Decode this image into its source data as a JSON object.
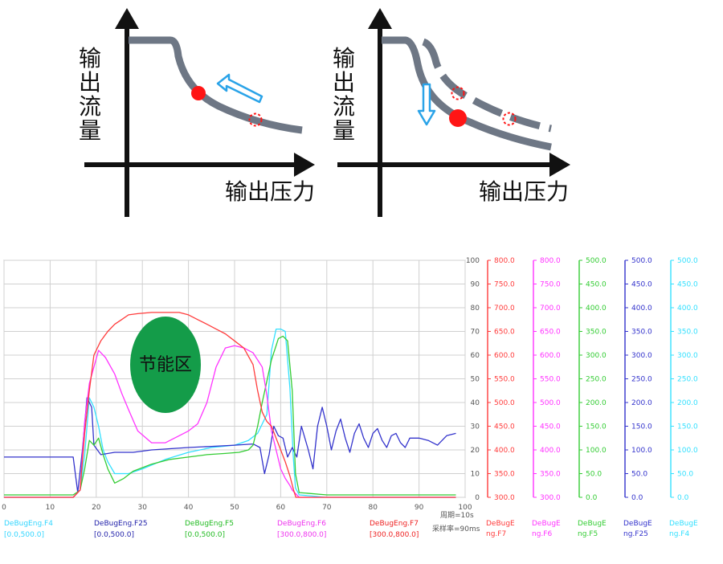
{
  "diagram_left": {
    "y_label": [
      "输",
      "出",
      "流",
      "量"
    ],
    "x_label": "输出压力"
  },
  "diagram_right": {
    "y_label": [
      "输",
      "出",
      "流",
      "量"
    ],
    "x_label": "输出压力"
  },
  "chart_data": {
    "type": "line",
    "annotation": "节能区",
    "x_ticks": [
      "0",
      "10",
      "20",
      "30",
      "40",
      "50",
      "60",
      "70",
      "80",
      "90",
      "100"
    ],
    "left_axis_ticks": [
      "100",
      "90",
      "80",
      "70",
      "60",
      "50",
      "40",
      "30",
      "20",
      "10",
      "0"
    ],
    "period_text": "周期=10s",
    "sample_text": "采样率=90ms",
    "right_axes": [
      {
        "name_line1": "DeBugE",
        "name_line2": "ng.F7",
        "color": "#ff3b3b",
        "ticks": [
          "800.0",
          "750.0",
          "700.0",
          "650.0",
          "600.0",
          "550.0",
          "500.0",
          "450.0",
          "400.0",
          "350.0",
          "300.0"
        ]
      },
      {
        "name_line1": "DeBugE",
        "name_line2": "ng.F6",
        "color": "#ff33ff",
        "ticks": [
          "800.0",
          "750.0",
          "700.0",
          "650.0",
          "600.0",
          "550.0",
          "500.0",
          "450.0",
          "400.0",
          "350.0",
          "300.0"
        ]
      },
      {
        "name_line1": "DeBugE",
        "name_line2": "ng.F5",
        "color": "#33cc33",
        "ticks": [
          "500.0",
          "450.0",
          "400.0",
          "350.0",
          "300.0",
          "250.0",
          "200.0",
          "150.0",
          "100.0",
          "50.0",
          "0.0"
        ]
      },
      {
        "name_line1": "DeBugE",
        "name_line2": "ng.F25",
        "color": "#3333cc",
        "ticks": [
          "500.0",
          "450.0",
          "400.0",
          "350.0",
          "300.0",
          "250.0",
          "200.0",
          "150.0",
          "100.0",
          "50.0",
          "0.0"
        ]
      },
      {
        "name_line1": "DeBugE",
        "name_line2": "ng.F4",
        "color": "#33e0ff",
        "ticks": [
          "500.0",
          "450.0",
          "400.0",
          "350.0",
          "300.0",
          "250.0",
          "200.0",
          "150.0",
          "100.0",
          "50.0",
          "0.0"
        ]
      }
    ],
    "legend": [
      {
        "name": "DeBugEng.F4",
        "range": "[0.0,500.0]",
        "color": "#33d6ff"
      },
      {
        "name": "DeBugEng.F25",
        "range": "[0.0,500.0]",
        "color": "#2222aa"
      },
      {
        "name": "DeBugEng.F5",
        "range": "[0.0,500.0]",
        "color": "#22bb22"
      },
      {
        "name": "DeBugEng.F6",
        "range": "[300.0,800.0]",
        "color": "#ee33ee"
      },
      {
        "name": "DeBugEng.F7",
        "range": "[300.0,800.0]",
        "color": "#ee2222"
      }
    ],
    "xlim": [
      0,
      100
    ],
    "ylim": [
      0,
      100
    ],
    "series": [
      {
        "key": "F4",
        "color": "#33e0ff",
        "x": [
          0,
          15,
          16.5,
          17.5,
          18.5,
          19.5,
          20.5,
          21.5,
          22.5,
          24,
          27,
          30,
          35,
          40,
          45,
          50,
          53,
          55,
          57,
          58,
          59,
          60,
          61,
          62,
          62.7,
          63.2,
          64,
          70,
          80,
          90,
          98
        ],
        "y": [
          0,
          0,
          3,
          18,
          42,
          38,
          30,
          20,
          15,
          10,
          10,
          12,
          16,
          19,
          21,
          22,
          24,
          27,
          35,
          62,
          71,
          71,
          70,
          46,
          18,
          4,
          1,
          0,
          0,
          0,
          0
        ]
      },
      {
        "key": "F25",
        "color": "#3333cc",
        "x": [
          0,
          10,
          15,
          16,
          17,
          18,
          19,
          19.5,
          21,
          24,
          28,
          32,
          36,
          40,
          45,
          50,
          54,
          55.5,
          56.5,
          57.5,
          58.5,
          59.5,
          60.5,
          61.5,
          62.5,
          63.5,
          64.5,
          66,
          67,
          68,
          69,
          70,
          71,
          72,
          73,
          74,
          75,
          76,
          77,
          78,
          79,
          80,
          81,
          82,
          83,
          84,
          85,
          86,
          87,
          88,
          90,
          92,
          94,
          96,
          98
        ],
        "y": [
          17,
          17,
          17,
          2,
          20,
          42,
          38,
          22,
          18,
          19,
          19,
          20,
          20.5,
          21,
          21.5,
          22,
          22.5,
          21,
          10,
          18,
          30,
          26,
          25,
          17,
          21,
          17,
          30,
          20,
          12,
          30,
          38,
          30,
          20,
          28,
          33,
          25,
          19,
          27,
          31,
          25,
          21,
          27,
          29,
          24,
          21,
          26,
          27,
          23,
          21,
          25,
          25,
          24,
          22,
          26,
          27
        ]
      },
      {
        "key": "F5",
        "color": "#33cc33",
        "x": [
          0,
          15,
          16.5,
          17.5,
          18.5,
          19.5,
          20.5,
          21.5,
          22.5,
          24,
          26,
          28,
          32,
          36,
          40,
          44,
          48,
          51,
          53,
          54,
          55,
          56,
          57,
          58,
          59,
          59.5,
          60.5,
          61.5,
          62.5,
          63.2,
          64,
          70,
          80,
          90,
          98
        ],
        "y": [
          1,
          1,
          3,
          12,
          24,
          22,
          25,
          18,
          12,
          6,
          8,
          11,
          14,
          16,
          17,
          18,
          18.5,
          19,
          20,
          22,
          30,
          40,
          49,
          58,
          64,
          67,
          68,
          66,
          45,
          10,
          2,
          1,
          1,
          1,
          1
        ]
      },
      {
        "key": "F6",
        "color": "#ff33ff",
        "x": [
          0,
          15,
          16.5,
          17.5,
          18.5,
          19.5,
          20.5,
          22,
          24,
          25.5,
          27,
          29,
          32,
          35,
          38,
          40,
          42,
          44,
          46,
          48,
          50,
          52,
          54,
          56,
          57,
          58,
          59,
          60,
          61,
          62,
          62.5,
          63.5,
          64,
          70,
          80,
          90,
          98
        ],
        "y": [
          0,
          0,
          3,
          32,
          48,
          55,
          62,
          59,
          52,
          44,
          37,
          28,
          23,
          23,
          26,
          28,
          31,
          40,
          55,
          63,
          64,
          63,
          61,
          55,
          43,
          28,
          20,
          12,
          8,
          5,
          3,
          1,
          0,
          0,
          0,
          0,
          0
        ]
      },
      {
        "key": "F7",
        "color": "#ff3b3b",
        "x": [
          0,
          15,
          16.5,
          17.5,
          18.5,
          19.5,
          21,
          22.5,
          24,
          25.5,
          27,
          29,
          32,
          35,
          38,
          40,
          42,
          44,
          46,
          48,
          50,
          52,
          54,
          55,
          56,
          57,
          58,
          59,
          60,
          61,
          62,
          62.8,
          63.3,
          64,
          70,
          80,
          90,
          98
        ],
        "y": [
          0,
          0,
          3,
          27,
          45,
          60,
          66,
          70,
          73,
          75,
          77,
          77.5,
          78,
          78,
          78,
          77,
          75,
          73,
          71,
          69,
          66,
          63,
          56,
          45,
          36,
          32,
          30,
          25,
          20,
          15,
          9,
          3,
          0,
          0,
          0,
          0,
          0,
          0
        ]
      }
    ]
  }
}
